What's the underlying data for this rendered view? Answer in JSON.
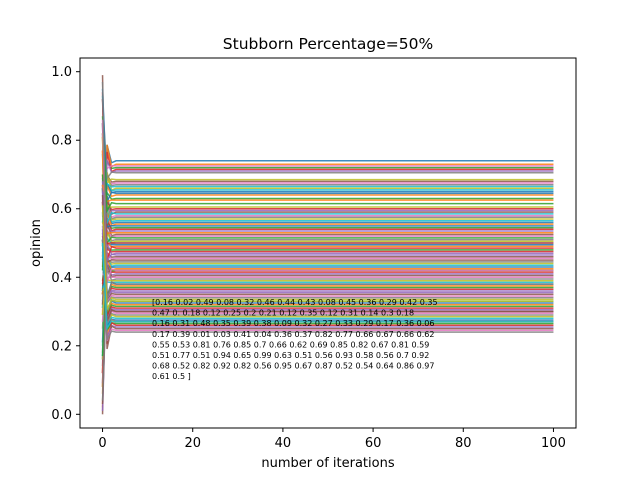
{
  "chart_data": {
    "type": "line",
    "title": "Stubborn Percentage=50%",
    "xlabel": "number of iterations",
    "ylabel": "opinion",
    "xlim": [
      -5,
      105
    ],
    "ylim": [
      -0.04,
      1.04
    ],
    "xticks": [
      0,
      20,
      40,
      60,
      80,
      100
    ],
    "yticks": [
      0.0,
      0.2,
      0.4,
      0.6,
      0.8,
      1.0
    ],
    "xtick_labels": [
      "0",
      "20",
      "40",
      "60",
      "80",
      "100"
    ],
    "ytick_labels": [
      "0.0",
      "0.2",
      "0.4",
      "0.6",
      "0.8",
      "1.0"
    ],
    "grid": false,
    "iterations": 100,
    "stubborn_opinions": [
      0.16,
      0.02,
      0.49,
      0.08,
      0.32,
      0.46,
      0.44,
      0.43,
      0.08,
      0.45,
      0.36,
      0.29,
      0.42,
      0.35,
      0.47,
      0.0,
      0.18,
      0.12,
      0.25,
      0.2,
      0.21,
      0.12,
      0.35,
      0.12,
      0.31,
      0.14,
      0.3,
      0.18,
      0.16,
      0.31,
      0.48,
      0.35,
      0.39,
      0.38,
      0.09,
      0.32,
      0.27,
      0.33,
      0.29,
      0.17,
      0.36,
      0.06,
      0.17,
      0.39,
      0.01,
      0.03,
      0.41,
      0.04,
      0.36,
      0.37,
      0.82,
      0.77,
      0.66,
      0.67,
      0.66,
      0.62,
      0.55,
      0.53,
      0.81,
      0.76,
      0.85,
      0.7,
      0.66,
      0.62,
      0.69,
      0.85,
      0.82,
      0.67,
      0.81,
      0.59,
      0.51,
      0.77,
      0.51,
      0.94,
      0.65,
      0.99,
      0.63,
      0.51,
      0.56,
      0.93,
      0.58,
      0.56,
      0.7,
      0.92,
      0.68,
      0.52,
      0.82,
      0.92,
      0.82,
      0.56,
      0.95,
      0.67,
      0.87,
      0.52,
      0.54,
      0.64,
      0.86,
      0.97,
      0.61,
      0.5
    ],
    "converged_opinions": [
      0.74,
      0.73,
      0.72,
      0.715,
      0.71,
      0.68,
      0.675,
      0.67,
      0.66,
      0.655,
      0.65,
      0.64,
      0.63,
      0.6,
      0.595,
      0.59,
      0.58,
      0.575,
      0.57,
      0.565,
      0.56,
      0.555,
      0.545,
      0.54,
      0.535,
      0.525,
      0.52,
      0.51,
      0.505,
      0.5,
      0.495,
      0.49,
      0.48,
      0.475,
      0.47,
      0.46,
      0.455,
      0.445,
      0.44,
      0.435,
      0.43,
      0.425,
      0.42,
      0.415,
      0.41,
      0.405,
      0.4,
      0.395,
      0.39,
      0.385,
      0.38,
      0.375,
      0.37,
      0.365,
      0.355,
      0.35,
      0.345,
      0.34,
      0.335,
      0.33,
      0.325,
      0.32,
      0.315,
      0.31,
      0.305,
      0.3,
      0.295,
      0.29,
      0.285,
      0.28,
      0.275,
      0.27,
      0.265,
      0.26,
      0.255,
      0.25,
      0.245,
      0.24,
      0.605,
      0.585,
      0.55,
      0.53,
      0.515,
      0.485,
      0.465,
      0.45,
      0.725,
      0.705,
      0.685,
      0.665,
      0.645,
      0.625,
      0.615,
      0.5,
      0.36,
      0.3,
      0.42,
      0.38,
      0.33,
      0.27
    ],
    "annotation_lines": [
      "[0.16 0.02 0.49 0.08 0.32 0.46 0.44 0.43 0.08 0.45 0.36 0.29 0.42 0.35",
      " 0.47 0.   0.18 0.12 0.25 0.2  0.21 0.12 0.35 0.12 0.31 0.14 0.3  0.18",
      " 0.16 0.31 0.48 0.35 0.39 0.38 0.09 0.32 0.27 0.33 0.29 0.17 0.36 0.06",
      " 0.17 0.39 0.01 0.03 0.41 0.04 0.36 0.37 0.82 0.77 0.66 0.67 0.66 0.62",
      " 0.55 0.53 0.81 0.76 0.85 0.7  0.66 0.62 0.69 0.85 0.82 0.67 0.81 0.59",
      " 0.51 0.77 0.51 0.94 0.65 0.99 0.63 0.51 0.56 0.93 0.58 0.56 0.7  0.92",
      " 0.68 0.52 0.82 0.92 0.82 0.56 0.95 0.67 0.87 0.52 0.54 0.64 0.86 0.97",
      " 0.61 0.5 ]"
    ],
    "colors": [
      "#1f77b4",
      "#ff7f0e",
      "#2ca02c",
      "#d62728",
      "#9467bd",
      "#8c564b",
      "#e377c2",
      "#7f7f7f",
      "#bcbd22",
      "#17becf"
    ]
  }
}
